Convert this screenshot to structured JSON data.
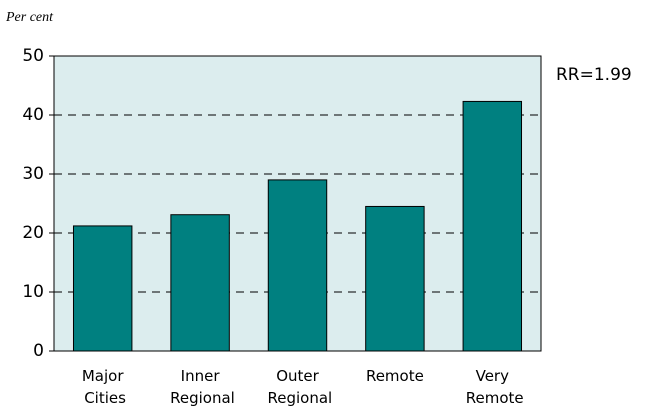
{
  "chart_data": {
    "type": "bar",
    "y_label": "Per cent",
    "annotation": "RR=1.99",
    "categories": [
      "Major Cities",
      "Inner Regional",
      "Outer Regional",
      "Remote",
      "Very Remote"
    ],
    "values": [
      21.2,
      23.1,
      29.0,
      24.5,
      42.3
    ],
    "color": "#008080",
    "ylim": [
      0,
      50
    ],
    "yticks": [
      0,
      10,
      20,
      30,
      40,
      50
    ],
    "grid": true
  }
}
